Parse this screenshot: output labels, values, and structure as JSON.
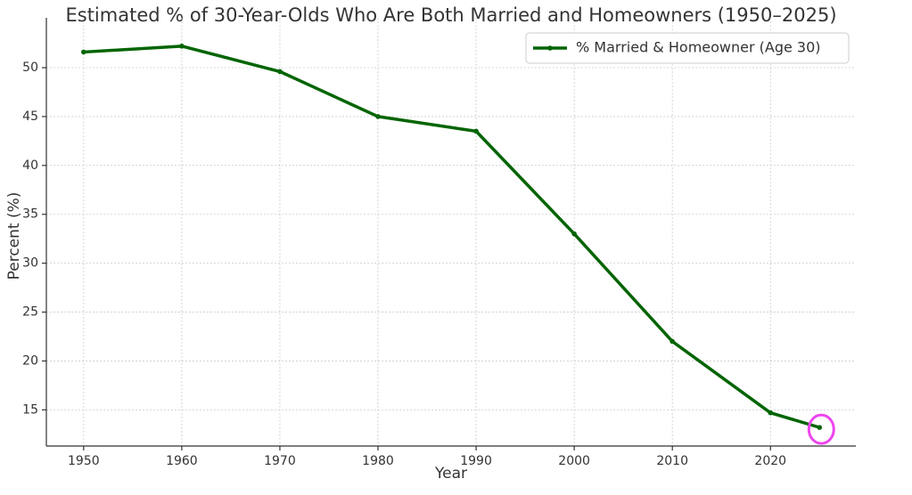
{
  "chart_data": {
    "type": "line",
    "title": "Estimated % of 30-Year-Olds Who Are Both Married and Homeowners (1950–2025)",
    "x_label": "Year",
    "y_label": "Percent (%)",
    "x": [
      1950,
      1960,
      1970,
      1980,
      1990,
      2000,
      2010,
      2020,
      2025
    ],
    "series": [
      {
        "name": "% Married & Homeowner (Age 30)",
        "color": "#006400",
        "values": [
          51.6,
          52.2,
          49.6,
          45.0,
          43.5,
          33.0,
          22.0,
          14.7,
          13.2
        ]
      }
    ],
    "xlim": [
      1946.2,
      2028.7
    ],
    "xticks": [
      1950,
      1960,
      1970,
      1980,
      1990,
      2000,
      2010,
      2020
    ],
    "ylim": [
      11.3,
      55.1
    ],
    "yticks": [
      15,
      20,
      25,
      30,
      35,
      40,
      45,
      50
    ],
    "grid": true,
    "legend": "upper right",
    "highlight_color": "#ee44ee"
  }
}
